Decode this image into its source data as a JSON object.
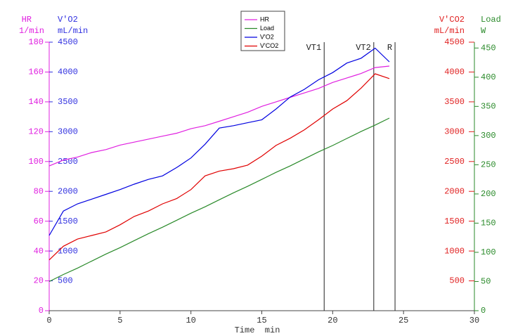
{
  "chart_data": {
    "type": "line",
    "xlabel": "Time  min",
    "xlim": [
      0,
      30
    ],
    "xticks": [
      0,
      5,
      10,
      15,
      20,
      25,
      30
    ],
    "ylabel": "HR",
    "yunit": "1/min",
    "ycolor": "#e020e0",
    "ylim": [
      0,
      180
    ],
    "yticks": [
      0,
      20,
      40,
      60,
      80,
      100,
      120,
      140,
      160,
      180
    ],
    "y2label": "V'O2",
    "y2unit": "mL/min",
    "y2color": "#3030e0",
    "y2lim": [
      0,
      4500
    ],
    "y2ticks": [
      500,
      1000,
      1500,
      2000,
      2500,
      3000,
      3500,
      4000,
      4500
    ],
    "y3label": "V'CO2",
    "y3unit": "mL/min",
    "y3color": "#e02020",
    "y3lim": [
      0,
      4500
    ],
    "y3ticks": [
      500,
      1000,
      1500,
      2000,
      2500,
      3000,
      3500,
      4000,
      4500
    ],
    "y4label": "Load",
    "y4unit": "W",
    "y4color": "#2a8a2a",
    "y4lim": [
      0,
      460
    ],
    "y4ticks": [
      0,
      50,
      100,
      150,
      200,
      250,
      300,
      350,
      400,
      450
    ],
    "x": [
      0,
      1,
      2,
      3,
      4,
      5,
      6,
      7,
      8,
      9,
      10,
      11,
      12,
      13,
      14,
      15,
      16,
      17,
      18,
      19,
      20,
      21,
      22,
      23,
      24
    ],
    "series": [
      {
        "name": "HR",
        "color": "#e020e0",
        "axis": "y",
        "values": [
          97,
          101,
          103,
          106,
          108,
          111,
          113,
          115,
          117,
          119,
          122,
          124,
          127,
          130,
          133,
          137,
          140,
          143,
          146,
          149,
          153,
          156,
          159,
          163,
          164
        ]
      },
      {
        "name": "Load",
        "color": "#2a8a2a",
        "axis": "y4",
        "values": [
          50,
          62,
          73,
          85,
          97,
          108,
          120,
          132,
          143,
          155,
          167,
          178,
          190,
          202,
          213,
          225,
          237,
          248,
          260,
          272,
          283,
          295,
          307,
          318,
          330
        ]
      },
      {
        "name": "V'O2",
        "color": "#0000e0",
        "axis": "y2",
        "values": [
          1260,
          1670,
          1790,
          1870,
          1950,
          2030,
          2120,
          2200,
          2260,
          2400,
          2560,
          2790,
          3060,
          3100,
          3150,
          3200,
          3380,
          3580,
          3710,
          3870,
          3990,
          4150,
          4230,
          4400,
          4170
        ]
      },
      {
        "name": "V'CO2",
        "color": "#e00000",
        "axis": "y3",
        "values": [
          850,
          1080,
          1200,
          1260,
          1320,
          1440,
          1580,
          1670,
          1790,
          1880,
          2030,
          2260,
          2340,
          2380,
          2440,
          2590,
          2770,
          2890,
          3030,
          3200,
          3380,
          3520,
          3730,
          3970,
          3890
        ]
      }
    ],
    "markers": [
      {
        "x": 19.4,
        "label": "VT1"
      },
      {
        "x": 22.9,
        "label": "VT2"
      },
      {
        "x": 24.4,
        "label": "R"
      }
    ]
  }
}
